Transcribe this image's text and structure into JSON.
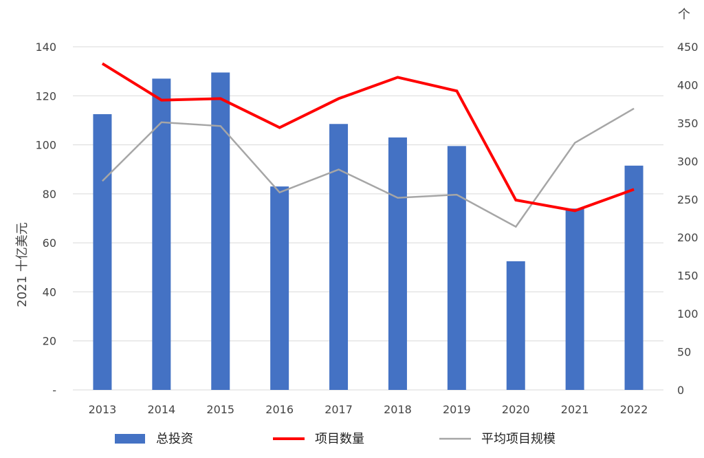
{
  "chart_data": {
    "type": "bar+line",
    "categories": [
      "2013",
      "2014",
      "2015",
      "2016",
      "2017",
      "2018",
      "2019",
      "2020",
      "2021",
      "2022"
    ],
    "series": [
      {
        "name": "总投资",
        "type": "bar",
        "axis": "left",
        "values": [
          112.5,
          127,
          129.5,
          83,
          108.5,
          103,
          99.5,
          52.5,
          74,
          91.5
        ],
        "color": "#4472C4"
      },
      {
        "name": "项目数量",
        "type": "line",
        "axis": "right",
        "values": [
          428,
          380,
          382,
          344,
          382,
          410,
          392,
          249,
          235,
          263
        ],
        "color": "#FF0000"
      },
      {
        "name": "平均项目规模",
        "type": "line",
        "axis": "right",
        "values": [
          274,
          351,
          346,
          259,
          289,
          252,
          256,
          214,
          324,
          369
        ],
        "color": "#A6A6A6"
      }
    ],
    "y_left": {
      "label": "2021 十亿美元",
      "ylim": [
        0,
        140
      ],
      "ticks": [
        0,
        20,
        40,
        60,
        80,
        100,
        120,
        140
      ],
      "tick_labels": [
        "-",
        "20",
        "40",
        "60",
        "80",
        "100",
        "120",
        "140"
      ]
    },
    "y_right": {
      "label": "个",
      "ylim": [
        0,
        450
      ],
      "ticks": [
        0,
        50,
        100,
        150,
        200,
        250,
        300,
        350,
        400,
        450
      ],
      "tick_labels": [
        "0",
        "50",
        "100",
        "150",
        "200",
        "250",
        "300",
        "350",
        "400",
        "450"
      ]
    },
    "grid": true,
    "legend": "bottom"
  }
}
